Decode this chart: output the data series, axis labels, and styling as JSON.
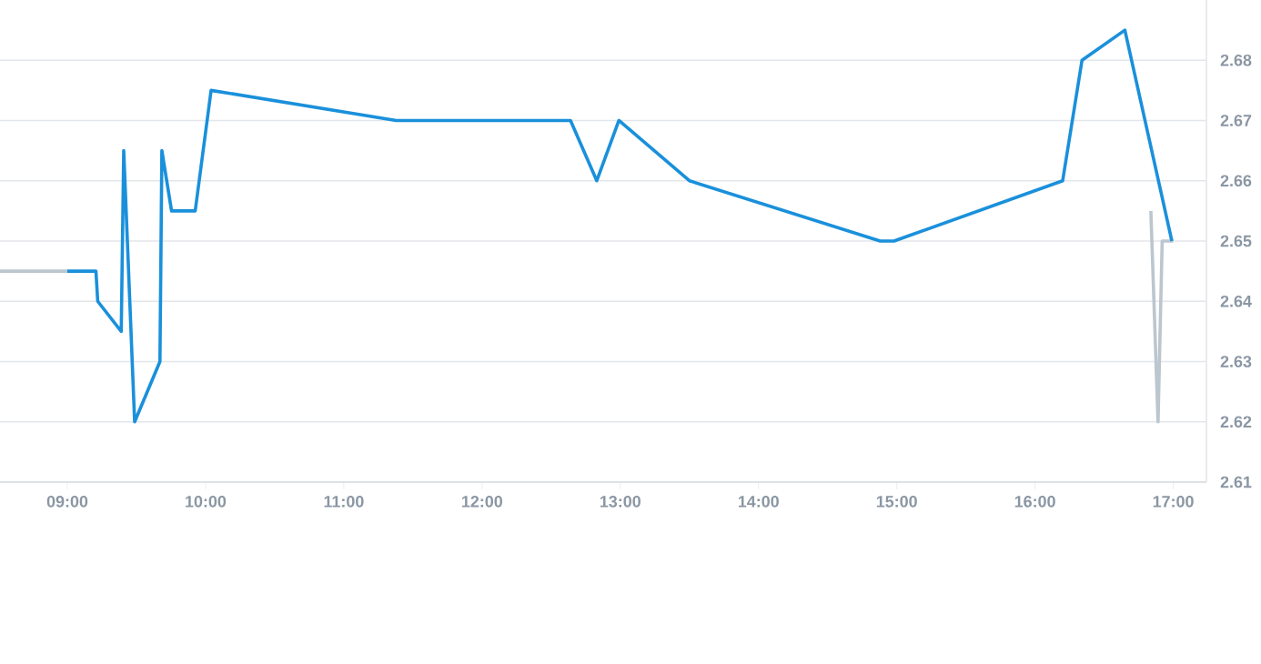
{
  "chart_data": {
    "type": "line",
    "xlim": [
      8.513,
      17.24
    ],
    "ylim": [
      2.61,
      2.69
    ],
    "xticks": [
      {
        "value": 9,
        "label": "09:00"
      },
      {
        "value": 10,
        "label": "10:00"
      },
      {
        "value": 11,
        "label": "11:00"
      },
      {
        "value": 12,
        "label": "12:00"
      },
      {
        "value": 13,
        "label": "13:00"
      },
      {
        "value": 14,
        "label": "14:00"
      },
      {
        "value": 15,
        "label": "15:00"
      },
      {
        "value": 16,
        "label": "16:00"
      },
      {
        "value": 17,
        "label": "17:00"
      }
    ],
    "yticks": [
      2.61,
      2.62,
      2.63,
      2.64,
      2.65,
      2.66,
      2.67,
      2.68
    ],
    "grid": "y",
    "marker": "none",
    "line_style": "solid",
    "series": [
      {
        "color": "#bcc6cf",
        "x": [
          8.513,
          9.0,
          9.01,
          16.838,
          16.89,
          16.92,
          17.0
        ],
        "values": [
          2.645,
          2.645,
          null,
          2.655,
          2.62,
          2.65,
          2.65
        ]
      },
      {
        "color": "#1a90db",
        "x": [
          9.0,
          9.207,
          9.22,
          9.39,
          9.408,
          9.487,
          9.67,
          9.684,
          9.754,
          9.925,
          10.04,
          11.38,
          12.64,
          12.83,
          12.99,
          13.5,
          14.88,
          14.98,
          16.2,
          16.34,
          16.65,
          16.99
        ],
        "values": [
          2.645,
          2.645,
          2.64,
          2.635,
          2.665,
          2.62,
          2.63,
          2.665,
          2.655,
          2.655,
          2.675,
          2.67,
          2.67,
          2.66,
          2.67,
          2.66,
          2.65,
          2.65,
          2.66,
          2.68,
          2.685,
          2.65
        ]
      }
    ]
  }
}
